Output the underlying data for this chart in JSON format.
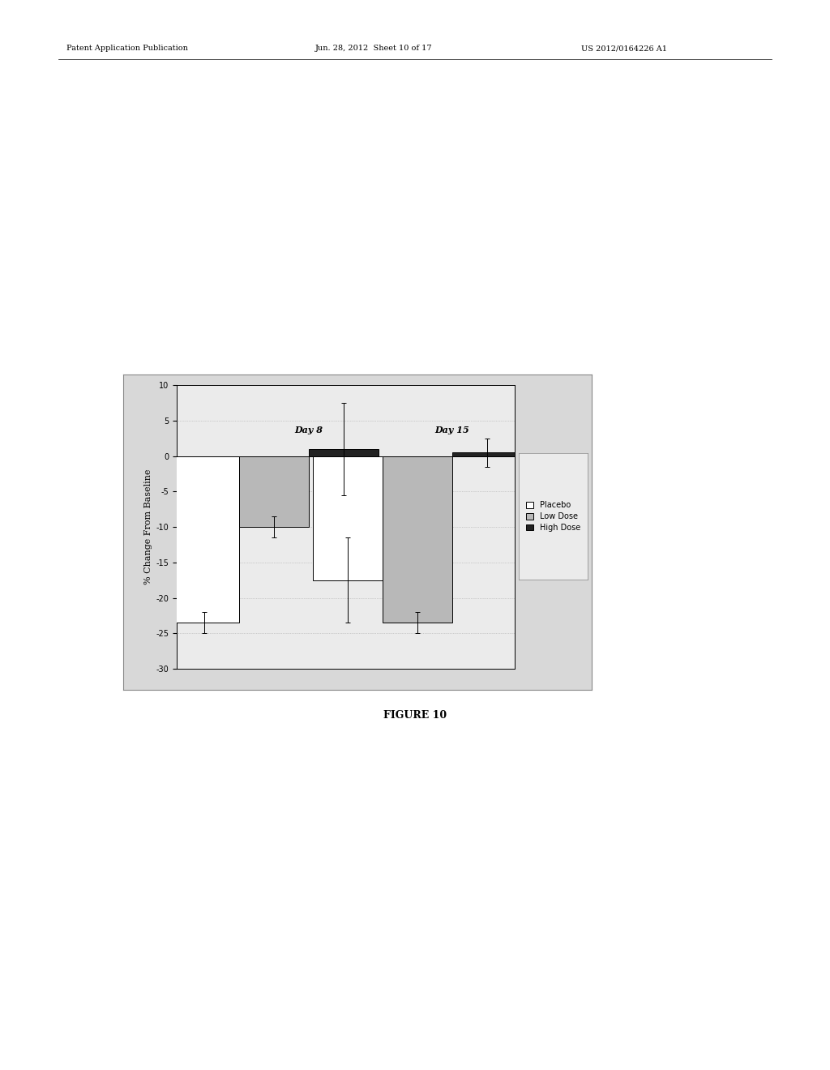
{
  "title": "",
  "xlabel": "",
  "ylabel": "% Change From Baseline",
  "figure_caption": "FIGURE 10",
  "ylim": [
    -30,
    10
  ],
  "yticks": [
    10,
    5,
    0,
    -5,
    -10,
    -15,
    -20,
    -25,
    -30
  ],
  "groups": [
    "Day 8",
    "Day 15"
  ],
  "categories": [
    "Placebo",
    "Low Dose",
    "High Dose"
  ],
  "values": {
    "Day 8": [
      -23.5,
      -10.0,
      1.0
    ],
    "Day 15": [
      -17.5,
      -23.5,
      0.5
    ]
  },
  "errors": {
    "Day 8": [
      1.5,
      1.5,
      6.5
    ],
    "Day 15": [
      6.0,
      1.5,
      2.0
    ]
  },
  "bar_colors": [
    "white",
    "#b8b8b8",
    "#222222"
  ],
  "bar_edgecolors": [
    "black",
    "black",
    "black"
  ],
  "bar_width": 0.18,
  "group_centers": [
    0.25,
    0.62
  ],
  "page_bg": "white",
  "chart_bg": "#ebebeb",
  "outer_box_bg": "#d8d8d8",
  "grid_color": "#aaaaaa",
  "font_size_label": 8,
  "font_size_tick": 7,
  "font_size_legend": 7,
  "font_size_group": 8,
  "font_size_caption": 9,
  "font_size_header": 7,
  "header_left": "Patent Application Publication",
  "header_mid": "Jun. 28, 2012  Sheet 10 of 17",
  "header_right": "US 2012/0164226 A1"
}
